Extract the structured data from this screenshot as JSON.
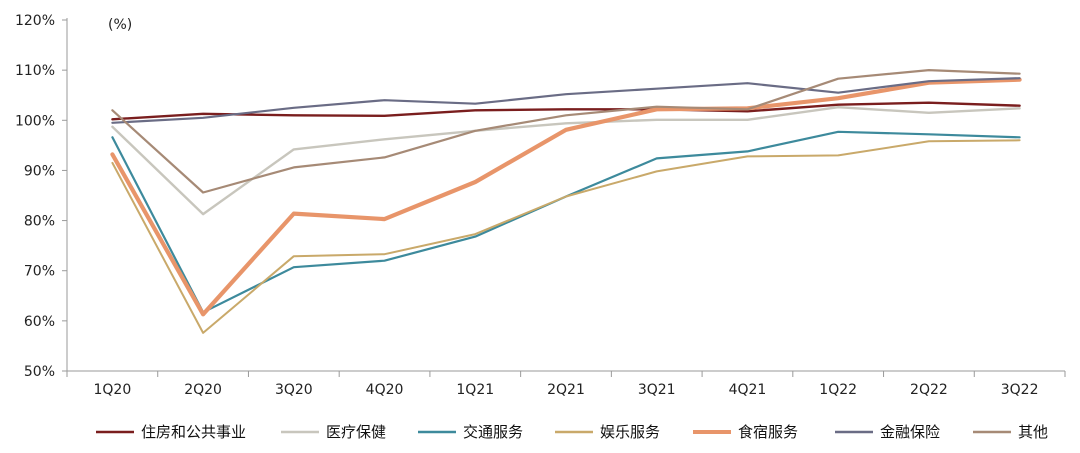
{
  "chart_data": {
    "type": "line",
    "title": "",
    "xlabel": "",
    "ylabel": "",
    "unit_label": "(%)",
    "categories": [
      "1Q20",
      "2Q20",
      "3Q20",
      "4Q20",
      "1Q21",
      "2Q21",
      "3Q21",
      "4Q21",
      "1Q22",
      "2Q22",
      "3Q22"
    ],
    "y_range": [
      50,
      120
    ],
    "y_ticks": [
      50,
      60,
      70,
      80,
      90,
      100,
      110,
      120
    ],
    "y_tick_labels": [
      "50%",
      "60%",
      "70%",
      "80%",
      "90%",
      "100%",
      "110%",
      "120%"
    ],
    "grid": false,
    "legend_position": "bottom",
    "series": [
      {
        "name": "住房和公共事业",
        "color": "#7a1e1e",
        "width": 2.4,
        "values": [
          100.2,
          101.3,
          101.0,
          100.9,
          102.0,
          102.2,
          102.2,
          101.8,
          103.1,
          103.5,
          102.9
        ]
      },
      {
        "name": "医疗保健",
        "color": "#c8c6bd",
        "width": 2.4,
        "values": [
          98.7,
          81.3,
          94.2,
          96.2,
          97.9,
          99.4,
          100.1,
          100.1,
          102.6,
          101.5,
          102.4
        ]
      },
      {
        "name": "交通服务",
        "color": "#3d8a9c",
        "width": 2.2,
        "values": [
          96.6,
          61.7,
          70.7,
          72.0,
          76.8,
          84.8,
          92.4,
          93.8,
          97.7,
          97.2,
          96.6
        ]
      },
      {
        "name": "娱乐服务",
        "color": "#c9a96a",
        "width": 2.0,
        "values": [
          91.5,
          57.6,
          72.9,
          73.3,
          77.3,
          84.8,
          89.8,
          92.8,
          93.0,
          95.8,
          96.0
        ]
      },
      {
        "name": "食宿服务",
        "color": "#e8956a",
        "width": 4.2,
        "values": [
          93.2,
          61.3,
          81.4,
          80.3,
          87.7,
          98.1,
          102.2,
          102.4,
          104.4,
          107.5,
          108.1
        ]
      },
      {
        "name": "金融保险",
        "color": "#6a6c85",
        "width": 2.2,
        "values": [
          99.5,
          100.5,
          102.5,
          104.0,
          103.3,
          105.2,
          106.3,
          107.4,
          105.5,
          107.8,
          108.4
        ]
      },
      {
        "name": "其他",
        "color": "#a68a76",
        "width": 2.2,
        "values": [
          102.0,
          85.6,
          90.6,
          92.6,
          97.9,
          101.0,
          102.7,
          102.2,
          108.3,
          110.0,
          109.3
        ]
      }
    ]
  }
}
